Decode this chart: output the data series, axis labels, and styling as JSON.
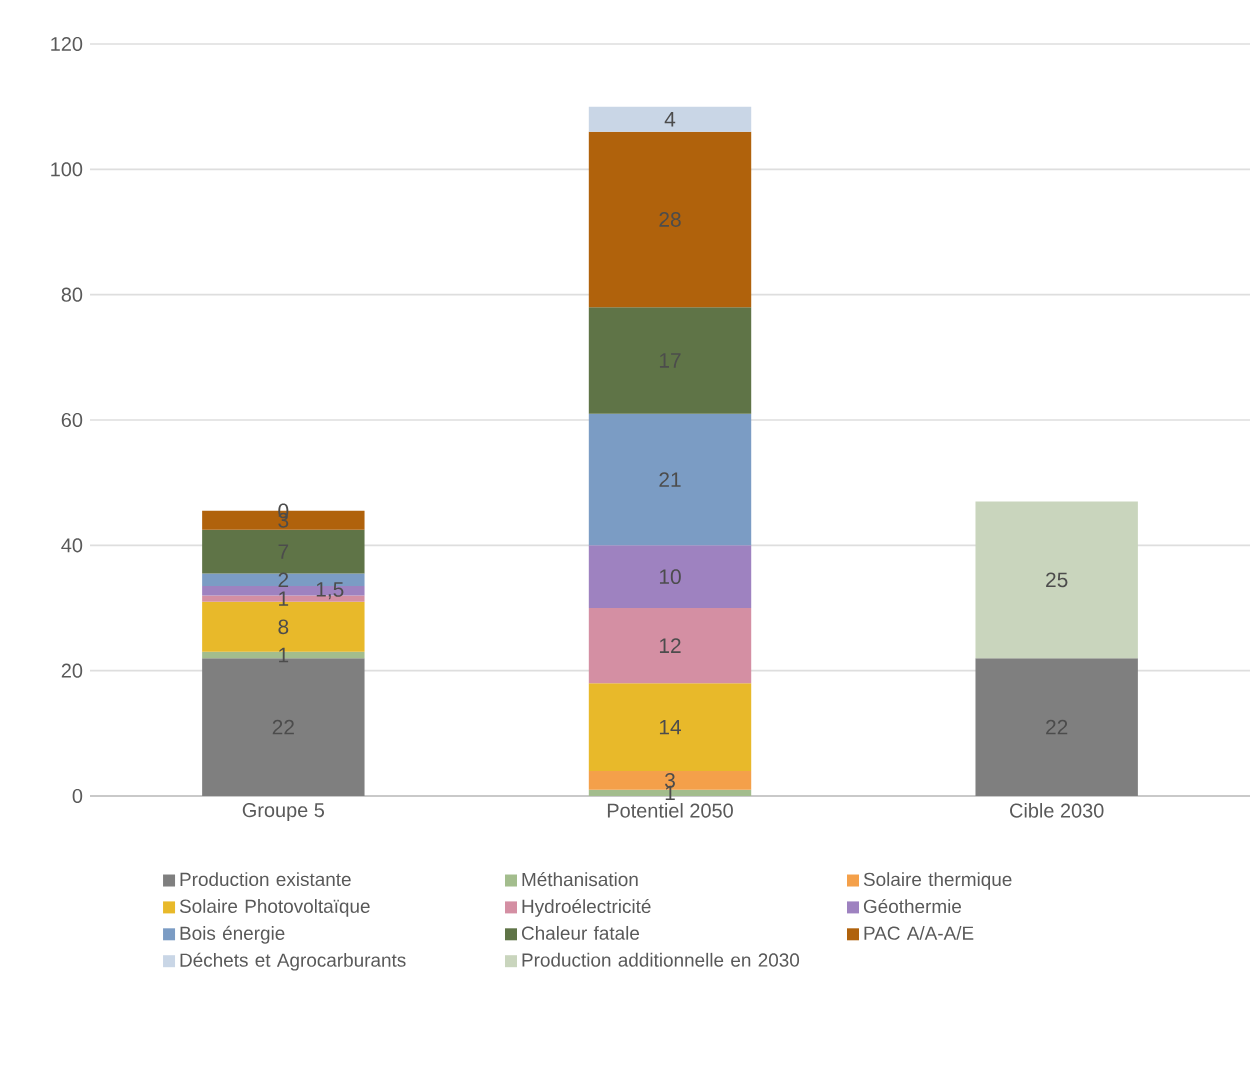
{
  "chart_data": {
    "type": "bar",
    "stacked": true,
    "categories": [
      "Groupe 5",
      "Potentiel 2050",
      "Cible 2030"
    ],
    "ylim": [
      0,
      120
    ],
    "yticks": [
      0,
      20,
      40,
      60,
      80,
      100,
      120
    ],
    "grid": "y",
    "legend": "bottom",
    "series": [
      {
        "name": "Production existante",
        "color": "#7f7f7f",
        "values": [
          22,
          null,
          22
        ],
        "value_labels": [
          "22",
          null,
          "22"
        ]
      },
      {
        "name": "Méthanisation",
        "color": "#a3bd8d",
        "values": [
          1,
          1,
          null
        ],
        "value_labels": [
          "1",
          "1",
          null
        ]
      },
      {
        "name": "Solaire thermique",
        "color": "#f4a04a",
        "values": [
          null,
          3,
          null
        ],
        "value_labels": [
          null,
          "3",
          null
        ]
      },
      {
        "name": "Solaire Photovoltaïque",
        "color": "#e8b92a",
        "values": [
          8,
          14,
          null
        ],
        "value_labels": [
          "8",
          "14",
          null
        ]
      },
      {
        "name": "Hydroélectricité",
        "color": "#d48fa3",
        "values": [
          1,
          12,
          null
        ],
        "value_labels": [
          "1",
          "12",
          null
        ]
      },
      {
        "name": "Géothermie",
        "color": "#9e82c0",
        "values": [
          1.5,
          10,
          null
        ],
        "value_labels": [
          "1,5",
          "10",
          null
        ]
      },
      {
        "name": "Bois énergie",
        "color": "#7b9cc4",
        "values": [
          2,
          21,
          null
        ],
        "value_labels": [
          "2",
          "21",
          null
        ]
      },
      {
        "name": "Chaleur fatale",
        "color": "#5f7447",
        "values": [
          7,
          17,
          null
        ],
        "value_labels": [
          "7",
          "17",
          null
        ]
      },
      {
        "name": "PAC A/A-A/E",
        "color": "#b0620c",
        "values": [
          3,
          28,
          null
        ],
        "value_labels": [
          "3",
          "28",
          null
        ]
      },
      {
        "name": "Déchets et Agrocarburants",
        "color": "#c9d6e6",
        "values": [
          0,
          4,
          null
        ],
        "value_labels": [
          "0",
          "4",
          null
        ]
      },
      {
        "name": "Production additionnelle en 2030",
        "color": "#c9d5bd",
        "values": [
          null,
          null,
          25
        ],
        "value_labels": [
          null,
          null,
          "25"
        ]
      }
    ]
  }
}
